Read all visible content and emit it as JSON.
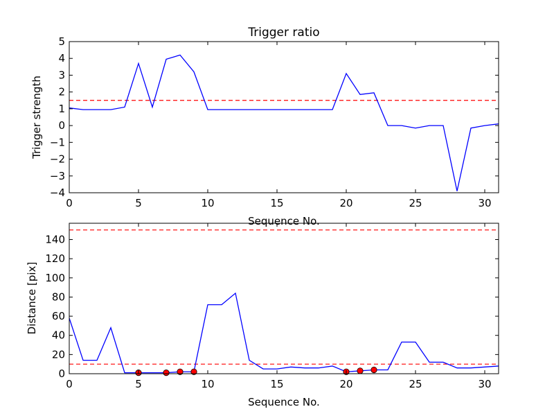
{
  "chart_data": [
    {
      "type": "line",
      "title": "Trigger ratio",
      "xlabel": "Sequence No.",
      "ylabel": "Trigger strength",
      "xlim": [
        0,
        31
      ],
      "ylim": [
        -4,
        5
      ],
      "xticks": [
        0,
        5,
        10,
        15,
        20,
        25,
        30
      ],
      "yticks": [
        -4,
        -3,
        -2,
        -1,
        0,
        1,
        2,
        3,
        4,
        5
      ],
      "ytick_labels": [
        "−4",
        "−3",
        "−2",
        "−1",
        "0",
        "1",
        "2",
        "3",
        "4",
        "5"
      ],
      "grid": false,
      "series_color": "#0000ff",
      "threshold": 1.5,
      "threshold_color": "#ff0000",
      "x": [
        0,
        1,
        2,
        3,
        4,
        5,
        6,
        7,
        8,
        9,
        10,
        11,
        12,
        13,
        14,
        15,
        16,
        17,
        18,
        19,
        20,
        21,
        22,
        23,
        24,
        25,
        26,
        27,
        28,
        29,
        30,
        31
      ],
      "values": [
        1.05,
        0.95,
        0.95,
        0.95,
        1.1,
        3.7,
        1.1,
        3.95,
        4.2,
        3.2,
        0.95,
        0.95,
        0.95,
        0.95,
        0.95,
        0.95,
        0.95,
        0.95,
        0.95,
        0.95,
        3.1,
        1.85,
        1.95,
        0.0,
        0.0,
        -0.15,
        0.0,
        0.0,
        -3.9,
        -0.15,
        0.0,
        0.1
      ]
    },
    {
      "type": "line",
      "title": "",
      "xlabel": "Sequence No.",
      "ylabel": "Distance [pix]",
      "xlim": [
        0,
        31
      ],
      "ylim": [
        0,
        157
      ],
      "xticks": [
        0,
        5,
        10,
        15,
        20,
        25,
        30
      ],
      "yticks": [
        0,
        20,
        40,
        60,
        80,
        100,
        120,
        140
      ],
      "ytick_labels": [
        "0",
        "20",
        "40",
        "60",
        "80",
        "100",
        "120",
        "140"
      ],
      "grid": false,
      "series_color": "#0000ff",
      "thresholds": [
        10,
        150
      ],
      "threshold_color": "#ff0000",
      "marker_color": "#ff0000",
      "x": [
        0,
        1,
        2,
        3,
        4,
        5,
        6,
        7,
        8,
        9,
        10,
        11,
        12,
        13,
        14,
        15,
        16,
        17,
        18,
        19,
        20,
        21,
        22,
        23,
        24,
        25,
        26,
        27,
        28,
        29,
        30,
        31
      ],
      "values": [
        58,
        14,
        14,
        48,
        1,
        1,
        1,
        1,
        2,
        2,
        72,
        72,
        84,
        14,
        5,
        5,
        7,
        6,
        6,
        8,
        2,
        3,
        4,
        4,
        33,
        33,
        12,
        12,
        6,
        6,
        7,
        8
      ],
      "markers": {
        "x": [
          5,
          7,
          8,
          9,
          20,
          21,
          22
        ],
        "values": [
          1,
          1,
          2,
          2,
          2,
          3,
          4
        ]
      }
    }
  ]
}
